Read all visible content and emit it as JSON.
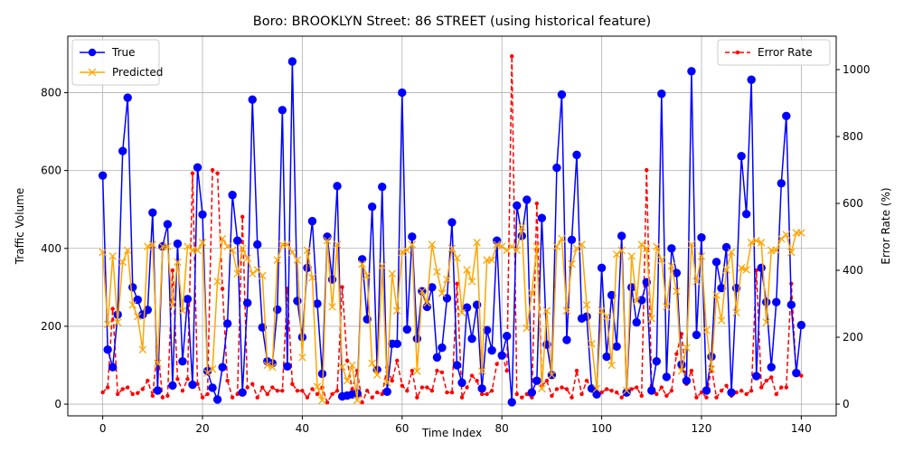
{
  "chart_data": {
    "type": "line",
    "title": "Boro: BROOKLYN Street: 86 STREET (using historical feature)",
    "xlabel": "Time Index",
    "ylabel": "Traffic Volume",
    "ylabel_right": "Error Rate (%)",
    "xlim": [
      -7,
      147
    ],
    "ylim": [
      -30,
      945
    ],
    "ylim_right": [
      -35,
      1100
    ],
    "x_ticks": [
      0,
      20,
      40,
      60,
      80,
      100,
      120,
      140
    ],
    "y_ticks": [
      0,
      200,
      400,
      600,
      800
    ],
    "y_ticks_right": [
      0,
      200,
      400,
      600,
      800,
      1000
    ],
    "grid": true,
    "legend_left": "top-left",
    "legend_right": "top-right",
    "colors": {
      "true": "#0000ff",
      "predicted": "#ffa500",
      "error": "#ff0000",
      "grid": "#b0b0b0"
    },
    "series": [
      {
        "name": "True",
        "axis": "left",
        "marker": "o",
        "values": [
          587,
          140,
          95,
          230,
          650,
          787,
          300,
          268,
          230,
          242,
          492,
          35,
          405,
          462,
          48,
          412,
          110,
          270,
          50,
          608,
          487,
          85,
          42,
          12,
          95,
          207,
          537,
          420,
          30,
          260,
          782,
          410,
          197,
          110,
          105,
          243,
          755,
          97,
          880,
          265,
          172,
          350,
          470,
          258,
          78,
          430,
          320,
          560,
          20,
          22,
          25,
          28,
          372,
          218,
          507,
          88,
          558,
          32,
          155,
          155,
          800,
          192,
          430,
          168,
          290,
          250,
          300,
          120,
          145,
          272,
          467,
          100,
          55,
          248,
          168,
          255,
          40,
          190,
          138,
          420,
          125,
          175,
          5,
          510,
          432,
          525,
          30,
          60,
          478,
          153,
          75,
          607,
          795,
          165,
          422,
          640,
          220,
          225,
          40,
          25,
          350,
          122,
          280,
          148,
          432,
          30,
          300,
          210,
          267,
          313,
          35,
          110,
          797,
          70,
          400,
          337,
          102,
          60,
          855,
          178,
          428,
          35,
          122,
          365,
          298,
          403,
          30,
          298,
          637,
          488,
          833,
          72,
          350,
          262,
          95,
          262,
          567,
          740,
          255,
          80,
          203
        ]
      },
      {
        "name": "Predicted",
        "axis": "left",
        "marker": "x",
        "values": [
          390,
          205,
          380,
          210,
          365,
          395,
          255,
          225,
          140,
          405,
          410,
          105,
          405,
          405,
          255,
          365,
          240,
          405,
          395,
          395,
          415,
          80,
          90,
          315,
          425,
          405,
          395,
          335,
          400,
          375,
          335,
          345,
          330,
          100,
          95,
          370,
          410,
          410,
          390,
          370,
          120,
          395,
          325,
          45,
          10,
          420,
          250,
          410,
          95,
          60,
          100,
          10,
          360,
          330,
          105,
          75,
          355,
          55,
          335,
          240,
          390,
          395,
          410,
          85,
          290,
          260,
          410,
          340,
          285,
          320,
          400,
          375,
          235,
          345,
          315,
          415,
          85,
          370,
          370,
          410,
          405,
          395,
          405,
          395,
          455,
          195,
          285,
          405,
          40,
          240,
          75,
          405,
          425,
          240,
          360,
          400,
          410,
          255,
          155,
          40,
          240,
          225,
          100,
          385,
          395,
          35,
          380,
          265,
          410,
          400,
          220,
          405,
          370,
          250,
          355,
          290,
          85,
          145,
          410,
          315,
          380,
          190,
          90,
          280,
          215,
          345,
          390,
          235,
          350,
          345,
          415,
          420,
          415,
          210,
          395,
          395,
          425,
          435,
          390,
          440,
          440
        ]
      },
      {
        "name": "Error Rate",
        "axis": "right",
        "marker": ".",
        "values": [
          35,
          50,
          285,
          30,
          45,
          50,
          30,
          33,
          45,
          70,
          25,
          170,
          20,
          25,
          400,
          75,
          40,
          75,
          690,
          60,
          20,
          30,
          700,
          690,
          345,
          70,
          20,
          30,
          560,
          50,
          60,
          20,
          50,
          30,
          50,
          40,
          40,
          345,
          60,
          40,
          40,
          20,
          45,
          30,
          50,
          5,
          30,
          40,
          350,
          130,
          45,
          100,
          5,
          40,
          20,
          35,
          30,
          110,
          70,
          130,
          55,
          40,
          100,
          20,
          50,
          50,
          40,
          100,
          95,
          35,
          35,
          360,
          20,
          50,
          85,
          70,
          30,
          30,
          40,
          120,
          150,
          100,
          1040,
          30,
          20,
          30,
          20,
          600,
          55,
          70,
          25,
          45,
          50,
          45,
          20,
          100,
          30,
          70,
          50,
          40,
          35,
          45,
          40,
          35,
          20,
          35,
          45,
          50,
          25,
          700,
          55,
          30,
          50,
          25,
          40,
          150,
          210,
          60,
          100,
          20,
          35,
          20,
          110,
          20,
          40,
          55,
          25,
          35,
          40,
          30,
          40,
          400,
          50,
          70,
          80,
          30,
          50,
          50,
          360,
          90,
          85
        ]
      }
    ]
  }
}
